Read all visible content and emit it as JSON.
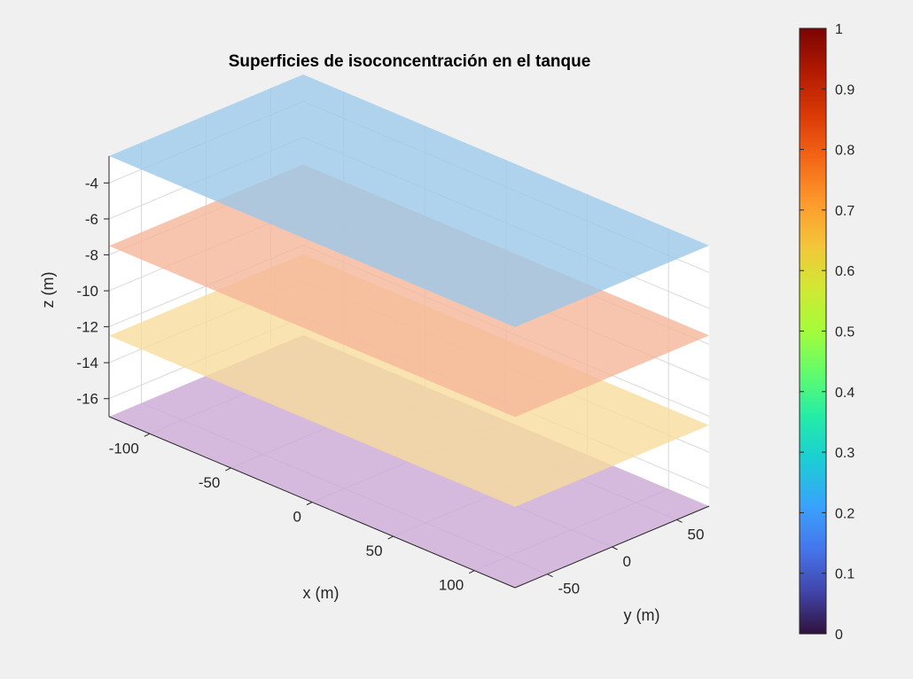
{
  "chart_data": {
    "type": "3d-surface",
    "title": "Superficies de isoconcentración en el tanque",
    "xlabel": "x (m)",
    "ylabel": "y (m)",
    "zlabel": "z (m)",
    "xlim": [
      -125,
      125
    ],
    "ylim": [
      -75,
      75
    ],
    "zlim": [
      -17,
      -2.5
    ],
    "x_ticks": [
      -100,
      -50,
      0,
      50,
      100
    ],
    "y_ticks": [
      -50,
      0,
      50
    ],
    "z_ticks": [
      -16,
      -14,
      -12,
      -10,
      -8,
      -6,
      -4
    ],
    "grid": true,
    "colormap": "turbo",
    "colorbar": {
      "ticks": [
        "0",
        "0.1",
        "0.2",
        "0.3",
        "0.4",
        "0.5",
        "0.6",
        "0.7",
        "0.8",
        "0.9",
        "1"
      ],
      "range": [
        0,
        1
      ]
    },
    "surfaces": [
      {
        "z": -2.5,
        "color": "#9cc8e8"
      },
      {
        "z": -7.5,
        "color": "#f5b59a"
      },
      {
        "z": -12.5,
        "color": "#f8dc9c"
      },
      {
        "z": -17,
        "color": "#cca9d6"
      }
    ]
  }
}
